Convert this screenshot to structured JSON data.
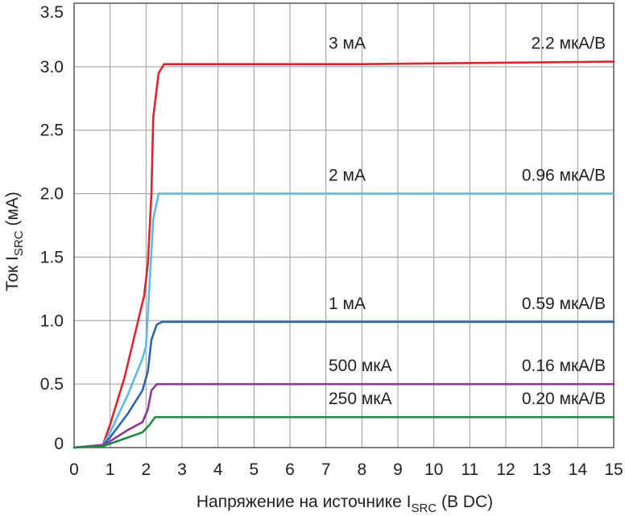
{
  "chart_data": {
    "type": "line",
    "xlabel": {
      "main": "Напряжение на источнике I",
      "sub": "SRC",
      "tail": " (В DC)"
    },
    "ylabel": {
      "main": "Ток I",
      "sub": "SRC",
      "tail": " (мА)"
    },
    "xlim": [
      0,
      15
    ],
    "ylim": [
      0,
      3.5
    ],
    "x_ticks": [
      0,
      1,
      2,
      3,
      4,
      5,
      6,
      7,
      8,
      9,
      10,
      11,
      12,
      13,
      14,
      15
    ],
    "x_tick_labels": [
      "0",
      "1",
      "2",
      "3",
      "4",
      "5",
      "6",
      "7",
      "8",
      "9",
      "10",
      "11",
      "12",
      "13",
      "14",
      "15"
    ],
    "y_ticks": [
      0,
      0.5,
      1.0,
      1.5,
      2.0,
      2.5,
      3.0,
      3.5
    ],
    "y_tick_labels": [
      "0",
      "0.5",
      "1.0",
      "1.5",
      "2.0",
      "2.5",
      "3.0",
      "3.5"
    ],
    "grid": true,
    "series": [
      {
        "name": "3 мА",
        "annotation": "2.2 мкА/В",
        "color": "#e0242c",
        "points": [
          [
            0,
            0
          ],
          [
            0.8,
            0.02
          ],
          [
            1.0,
            0.18
          ],
          [
            1.4,
            0.55
          ],
          [
            1.95,
            1.2
          ],
          [
            2.05,
            1.45
          ],
          [
            2.15,
            2.0
          ],
          [
            2.2,
            2.6
          ],
          [
            2.35,
            2.95
          ],
          [
            2.5,
            3.02
          ],
          [
            3,
            3.02
          ],
          [
            8,
            3.02
          ],
          [
            15,
            3.04
          ]
        ]
      },
      {
        "name": "2 мА",
        "annotation": "0.96 мкА/В",
        "color": "#5bbbe6",
        "points": [
          [
            0,
            0
          ],
          [
            0.8,
            0.02
          ],
          [
            1.0,
            0.12
          ],
          [
            1.5,
            0.42
          ],
          [
            1.9,
            0.7
          ],
          [
            2.0,
            0.8
          ],
          [
            2.1,
            1.3
          ],
          [
            2.2,
            1.8
          ],
          [
            2.35,
            2.0
          ],
          [
            2.5,
            2.0
          ],
          [
            15,
            2.0
          ]
        ]
      },
      {
        "name": "1 мА",
        "annotation": "0.59 мкА/В",
        "color": "#2e66ad",
        "points": [
          [
            0,
            0
          ],
          [
            0.8,
            0.02
          ],
          [
            1.0,
            0.08
          ],
          [
            1.5,
            0.27
          ],
          [
            1.9,
            0.45
          ],
          [
            2.05,
            0.6
          ],
          [
            2.15,
            0.85
          ],
          [
            2.3,
            0.97
          ],
          [
            2.45,
            0.99
          ],
          [
            15,
            0.99
          ]
        ]
      },
      {
        "name": "500 мкА",
        "annotation": "0.16 мкА/В",
        "color": "#8a3b93",
        "points": [
          [
            0,
            0
          ],
          [
            0.8,
            0.02
          ],
          [
            1.0,
            0.05
          ],
          [
            1.5,
            0.14
          ],
          [
            1.9,
            0.2
          ],
          [
            2.05,
            0.3
          ],
          [
            2.15,
            0.45
          ],
          [
            2.3,
            0.5
          ],
          [
            15,
            0.5
          ]
        ]
      },
      {
        "name": "250 мкА",
        "annotation": "0.20 мкА/В",
        "color": "#1e8a42",
        "points": [
          [
            0,
            0
          ],
          [
            0.8,
            0.01
          ],
          [
            1.0,
            0.03
          ],
          [
            1.5,
            0.08
          ],
          [
            1.9,
            0.12
          ],
          [
            2.1,
            0.18
          ],
          [
            2.25,
            0.24
          ],
          [
            2.5,
            0.24
          ],
          [
            15,
            0.24
          ]
        ]
      }
    ]
  }
}
